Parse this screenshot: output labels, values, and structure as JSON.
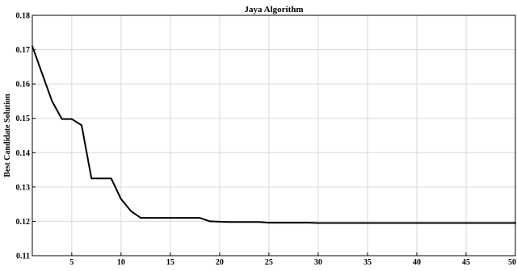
{
  "chart_data": {
    "type": "line",
    "title": "Jaya Algorithm",
    "xlabel": "",
    "ylabel": "Best Candidate Solution",
    "xlim": [
      1,
      50
    ],
    "ylim": [
      0.11,
      0.18
    ],
    "xticks": [
      5,
      10,
      15,
      20,
      25,
      30,
      35,
      40,
      45,
      50
    ],
    "yticks": [
      0.11,
      0.12,
      0.13,
      0.14,
      0.15,
      0.16,
      0.17,
      0.18
    ],
    "ytick_labels": [
      "0.11",
      "0.12",
      "0.13",
      "0.14",
      "0.15",
      "0.16",
      "0.17",
      "0.18"
    ],
    "grid": true,
    "series": [
      {
        "color": "#000000",
        "x": [
          1,
          2,
          3,
          4,
          5,
          6,
          7,
          8,
          9,
          10,
          11,
          12,
          13,
          14,
          15,
          16,
          17,
          18,
          19,
          20,
          21,
          22,
          23,
          24,
          25,
          26,
          27,
          28,
          29,
          30,
          31,
          32,
          33,
          34,
          35,
          36,
          37,
          38,
          39,
          40,
          41,
          42,
          43,
          44,
          45,
          46,
          47,
          48,
          49,
          50
        ],
        "y": [
          0.171,
          0.163,
          0.155,
          0.1498,
          0.1498,
          0.148,
          0.1325,
          0.1325,
          0.1325,
          0.1265,
          0.123,
          0.121,
          0.121,
          0.121,
          0.121,
          0.121,
          0.121,
          0.121,
          0.12,
          0.1199,
          0.1198,
          0.1198,
          0.1198,
          0.1198,
          0.1196,
          0.1196,
          0.1196,
          0.1196,
          0.1196,
          0.1195,
          0.1195,
          0.1195,
          0.1195,
          0.1195,
          0.1195,
          0.1195,
          0.1195,
          0.1195,
          0.1195,
          0.1195,
          0.1195,
          0.1195,
          0.1195,
          0.1195,
          0.1195,
          0.1195,
          0.1195,
          0.1195,
          0.1195,
          0.1195
        ]
      }
    ]
  }
}
